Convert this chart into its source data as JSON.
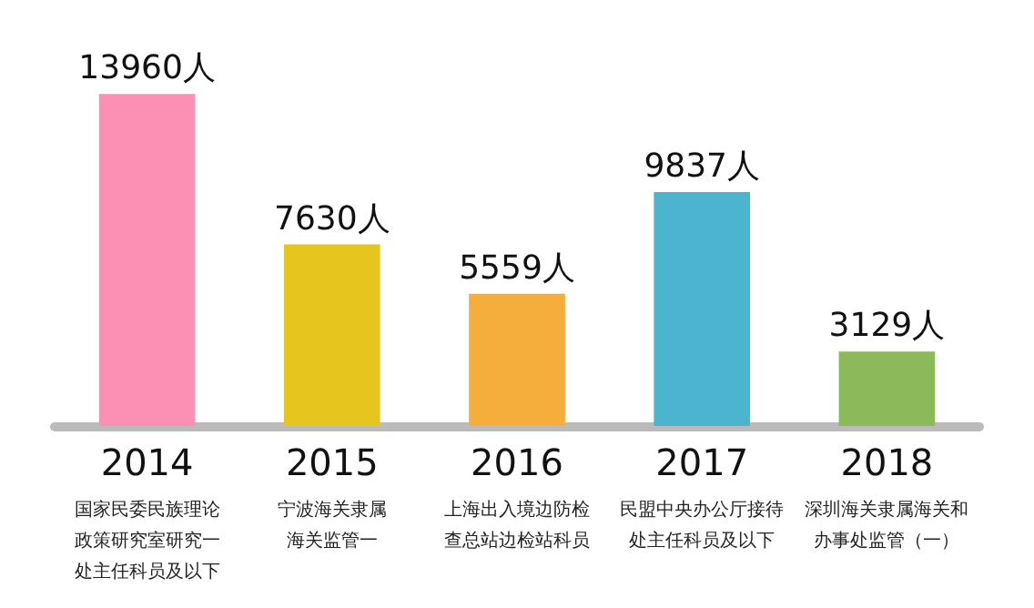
{
  "chart_data": {
    "type": "bar",
    "categories": [
      "2014",
      "2015",
      "2016",
      "2017",
      "2018"
    ],
    "values": [
      13960,
      7630,
      5559,
      9837,
      3129
    ],
    "value_labels": [
      "13960人",
      "7630人",
      "5559人",
      "9837人",
      "3129人"
    ],
    "colors": [
      "#fc8fb4",
      "#e5c51e",
      "#f5ad3b",
      "#4db4cf",
      "#8cba5a"
    ],
    "annotations": [
      "国家民委民族理论政策研究室研究一处主任科员及以下",
      "宁波海关隶属海关监管一",
      "上海出入境边防检查总站边检站科员",
      "民盟中央办公厅接待处主任科员及以下",
      "深圳海关隶属海关和办事处监管（一）"
    ],
    "data_labels": false
  }
}
